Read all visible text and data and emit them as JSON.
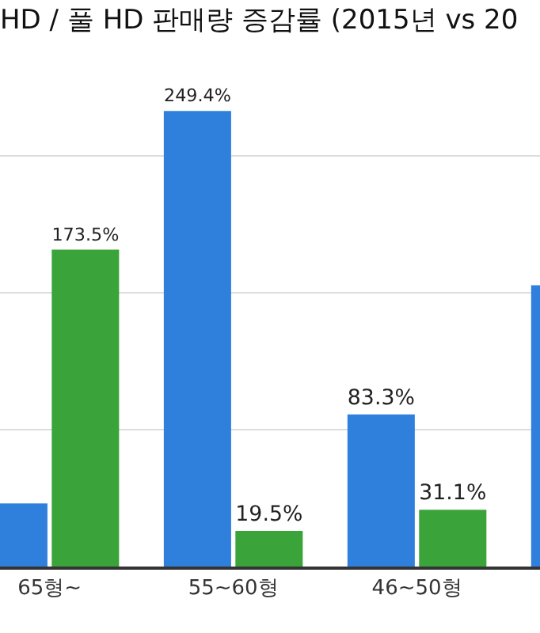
{
  "chart_data": {
    "type": "bar",
    "title": "HD / 풀 HD 판매량 증감률 (2015년 vs 20",
    "categories": [
      "65형~",
      "55~60형",
      "46~50형",
      null
    ],
    "series": [
      {
        "color": "#2f80dc",
        "values": [
          34.5,
          249.4,
          83.3,
          154
        ],
        "value_labels": [
          null,
          "249.4%",
          "83.3%",
          null
        ]
      },
      {
        "color": "#3aa33a",
        "values": [
          173.5,
          19.5,
          31.1,
          null
        ],
        "value_labels": [
          "173.5%",
          "19.5%",
          "31.1%",
          null
        ]
      }
    ],
    "yticks": [
      {
        "value": 75,
        "label": null
      },
      {
        "value": 150,
        "label": null
      },
      {
        "value": 225,
        "label": null
      }
    ],
    "grid": "y",
    "tick_labels": "x"
  }
}
